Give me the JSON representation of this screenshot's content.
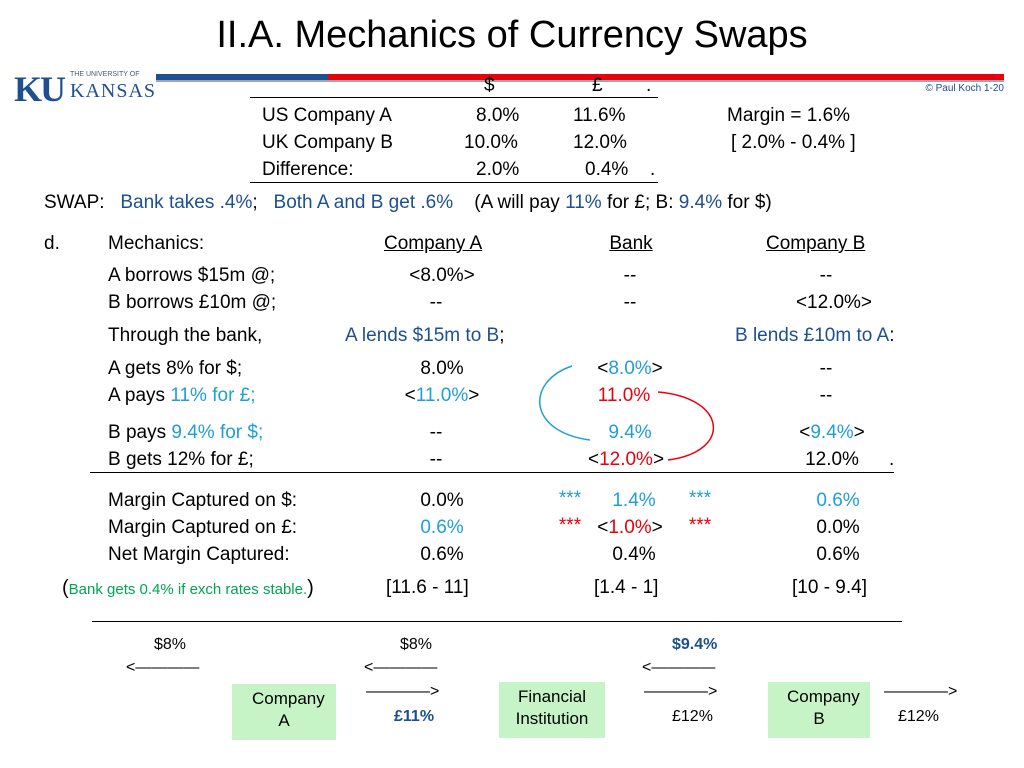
{
  "title": "II.A.  Mechanics of Currency Swaps",
  "logo": {
    "ku": "KU",
    "small": "THE UNIVERSITY OF",
    "big": "KANSAS"
  },
  "copyright": "© Paul Koch 1-20",
  "rates_table": {
    "header": {
      "usd": "$",
      "gbp": "£",
      "dot": "."
    },
    "rows": [
      {
        "label": "US Company A",
        "usd": "8.0%",
        "gbp": "11.6%"
      },
      {
        "label": "UK Company B",
        "usd": "10.0%",
        "gbp": "12.0%"
      },
      {
        "label": "Difference:",
        "usd": "2.0%",
        "gbp": "0.4%",
        "dot": "."
      }
    ],
    "margin": "Margin  =  1.6%",
    "margin_calc": "[ 2.0% - 0.4% ]"
  },
  "swap_line": {
    "label": "SWAP:",
    "bank": "Bank takes .4%",
    "semi1": ";",
    "both": "Both  A  and  B  get .6%",
    "pay_open": "(A will pay ",
    "a_rate": "11%",
    "pay_mid": "  for £;   B:  ",
    "b_rate": "9.4%",
    "pay_close": "  for $)"
  },
  "mechanics": {
    "d": "d.",
    "label": "Mechanics:",
    "col_a": "Company A",
    "col_bank": "Bank",
    "col_b": "Company B",
    "a_borrows": {
      "label": "A borrows $15m @;",
      "a": "<8.0%>",
      "bank": "--",
      "b": "--"
    },
    "b_borrows": {
      "label": "B borrows £10m @;",
      "a": "--",
      "bank": "--",
      "b": "<12.0%>"
    },
    "through": {
      "label": "Through the bank,",
      "a_lends": "A lends $15m to B",
      "semi": ";",
      "b_lends": "B lends £10m to A",
      "colon": ":"
    },
    "a_gets": {
      "label": "A gets  8%   for $;",
      "a": "8.0%",
      "bank_open": "<",
      "bank_val": "8.0%",
      "bank_close": ">",
      "b": "--"
    },
    "a_pays": {
      "label_pre": "A pays ",
      "label_rate": "11% for £;",
      "a_open": "<",
      "a_val": "11.0%",
      "a_close": ">",
      "bank": "11.0%",
      "b": "--"
    },
    "b_pays": {
      "label_pre": "B pays ",
      "label_rate": "9.4% for $;",
      "a": "--",
      "bank": "9.4%",
      "b_open": "<",
      "b_val": "9.4%",
      "b_close": ">"
    },
    "b_gets": {
      "label": "B gets 12%   for £;",
      "a": "--",
      "bank_open": "<",
      "bank_val": "12.0%",
      "bank_close": ">",
      "b": "12.0%",
      "dot": "."
    }
  },
  "margins": {
    "usd": {
      "label": "Margin Captured on $:",
      "a": "0.0%",
      "stars_l": "***",
      "bank": "1.4%",
      "stars_r": "***",
      "b": "0.6%"
    },
    "gbp": {
      "label": "Margin Captured on £:",
      "a": "0.6%",
      "stars_l": "***",
      "bank_open": "<",
      "bank_val": "1.0%",
      "bank_close": ">",
      "stars_r": "***",
      "b": "0.0%"
    },
    "net": {
      "label": "Net Margin Captured:",
      "a": "0.6%",
      "bank": "0.4%",
      "b": "0.6%"
    },
    "note_open": "(",
    "note": "Bank gets 0.4% if exch rates stable.",
    "note_close": ")",
    "calc_a": "[11.6 - 11]",
    "calc_bank": "[1.4 - 1]",
    "calc_b": "[10 - 9.4]"
  },
  "diagram": {
    "company_a": "Company A",
    "institution": "Financial Institution",
    "company_b": "Company B",
    "a_in": "$8%",
    "bank_in_left": "$8%",
    "bank_in_right": "$9.4%",
    "a_to_bank": "£11%",
    "bank_to_b": "£12%",
    "b_out": "£12%",
    "arrow_left": "<————",
    "arrow_left2": "<————",
    "arrow_left3": "<————",
    "arrow_right1": "————>",
    "arrow_right2": "————>",
    "arrow_right3": "————>"
  },
  "colors": {
    "cyan": "#1f9ed8",
    "red": "#e8000d",
    "green": "#00a550",
    "navy": "#1d4f91",
    "box": "#c6f4c6"
  }
}
